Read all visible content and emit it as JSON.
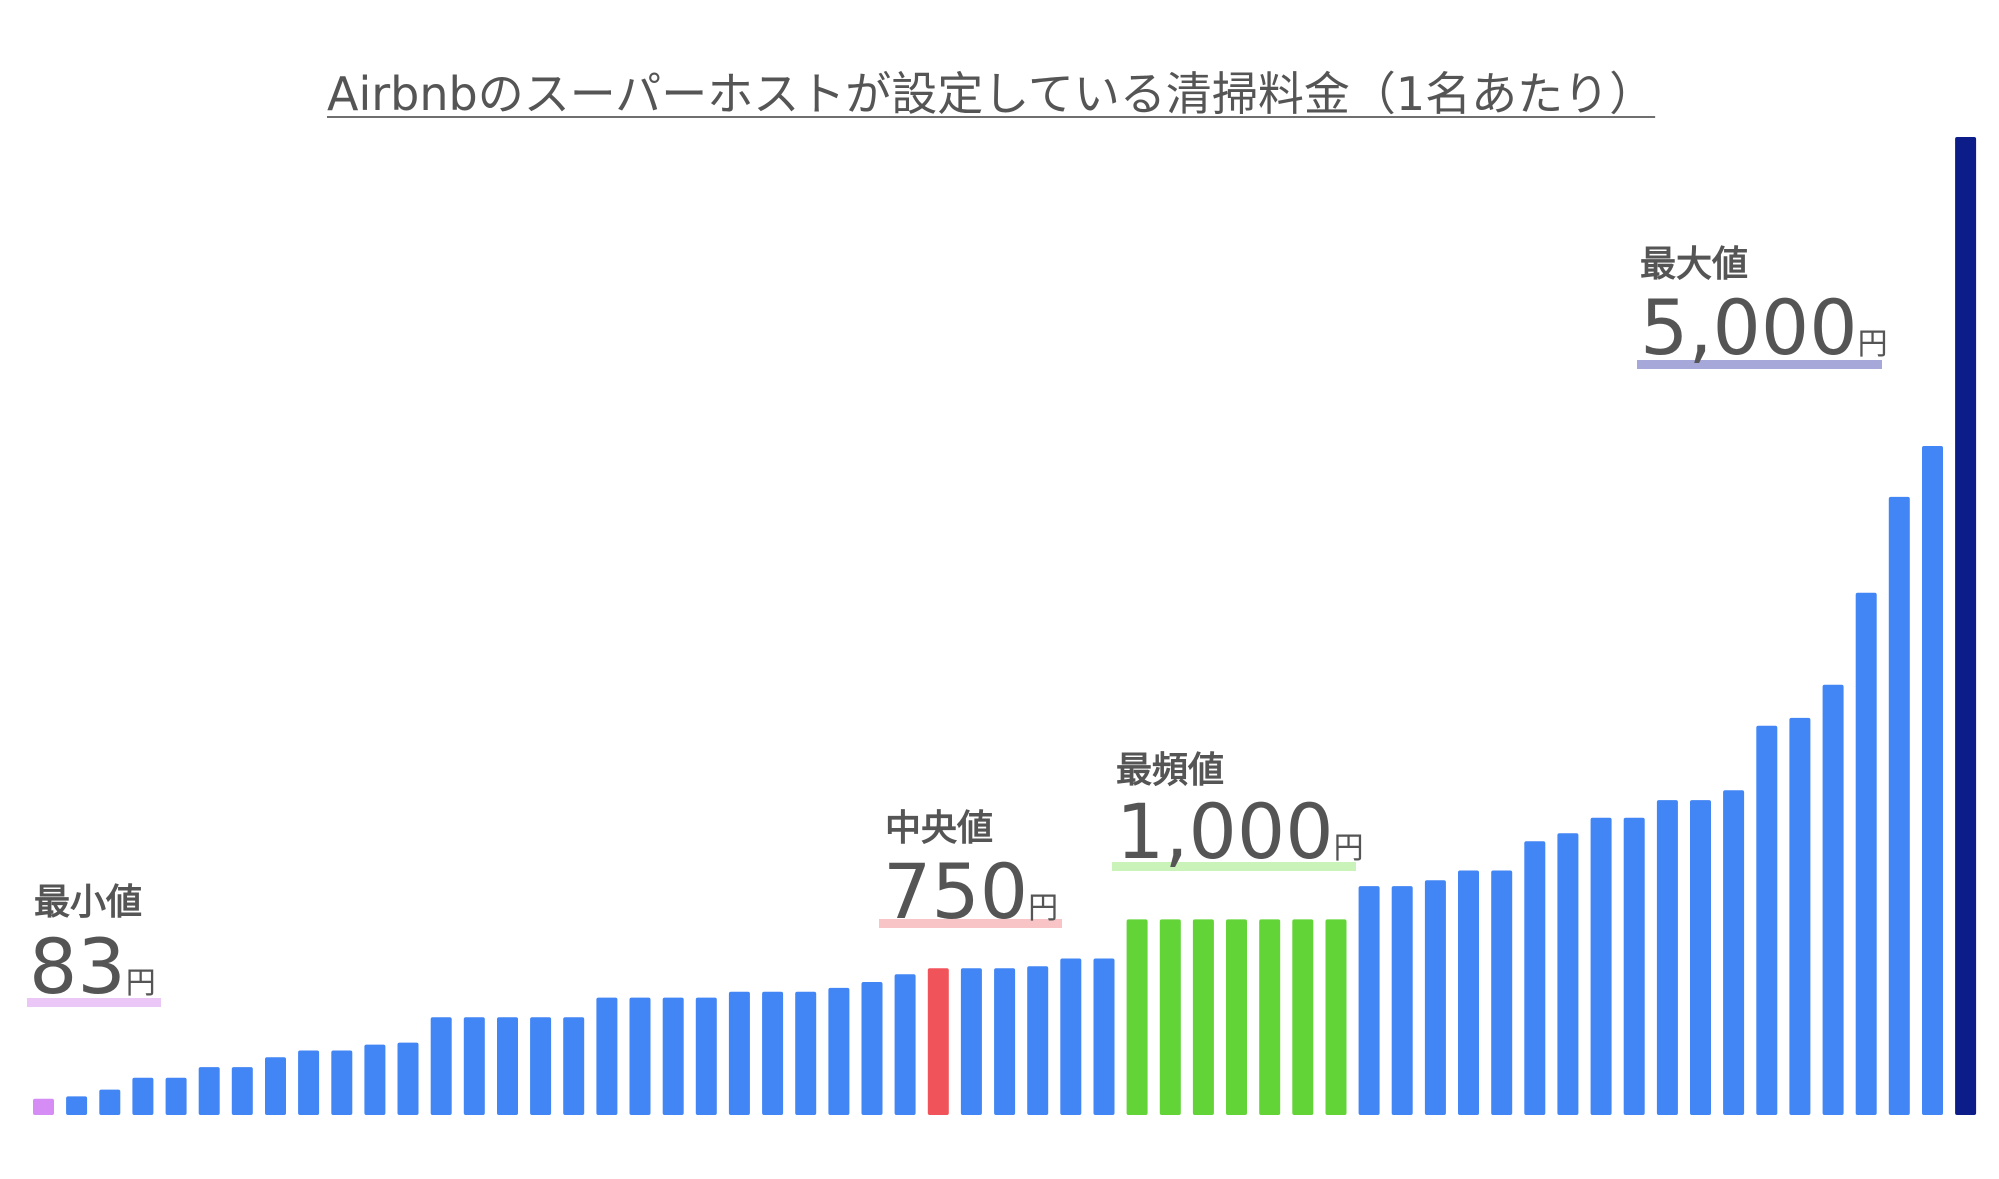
{
  "chart_data": {
    "type": "bar",
    "title": "Airbnbのスーパーホストが設定している清掃料金（1名あたり）",
    "xlabel": "",
    "ylabel": "",
    "ylim": [
      0,
      5000
    ],
    "grid": false,
    "legend": "none",
    "colors": {
      "default": "#4285f4",
      "min": "#d68cf5",
      "median": "#f0545a",
      "mode": "#62d437",
      "max": "#0c1d8a",
      "title_underline": "#6f6f6f",
      "min_underline": "#ebc7f8",
      "median_underline": "#f8c4c6",
      "mode_underline": "#c9f3b8",
      "max_underline": "#a5a8d8"
    },
    "values": [
      83,
      95,
      130,
      190,
      190,
      245,
      245,
      295,
      330,
      330,
      360,
      370,
      500,
      500,
      500,
      500,
      500,
      600,
      600,
      600,
      600,
      630,
      630,
      630,
      650,
      680,
      720,
      750,
      750,
      750,
      760,
      800,
      800,
      1000,
      1000,
      1000,
      1000,
      1000,
      1000,
      1000,
      1170,
      1170,
      1200,
      1250,
      1250,
      1400,
      1440,
      1520,
      1520,
      1610,
      1610,
      1660,
      1990,
      2030,
      2200,
      2670,
      3160,
      3420,
      5000
    ],
    "highlights": {
      "min": [
        0
      ],
      "median": [
        27
      ],
      "mode": [
        33,
        34,
        35,
        36,
        37,
        38,
        39
      ],
      "max": [
        58
      ]
    },
    "annotations": {
      "min": {
        "head": "最小値",
        "value": "83",
        "unit": "円"
      },
      "median": {
        "head": "中央値",
        "value": "750",
        "unit": "円"
      },
      "mode": {
        "head": "最頻値",
        "value": "1,000",
        "unit": "円"
      },
      "max": {
        "head": "最大値",
        "value": "5,000",
        "unit": "円"
      }
    }
  }
}
